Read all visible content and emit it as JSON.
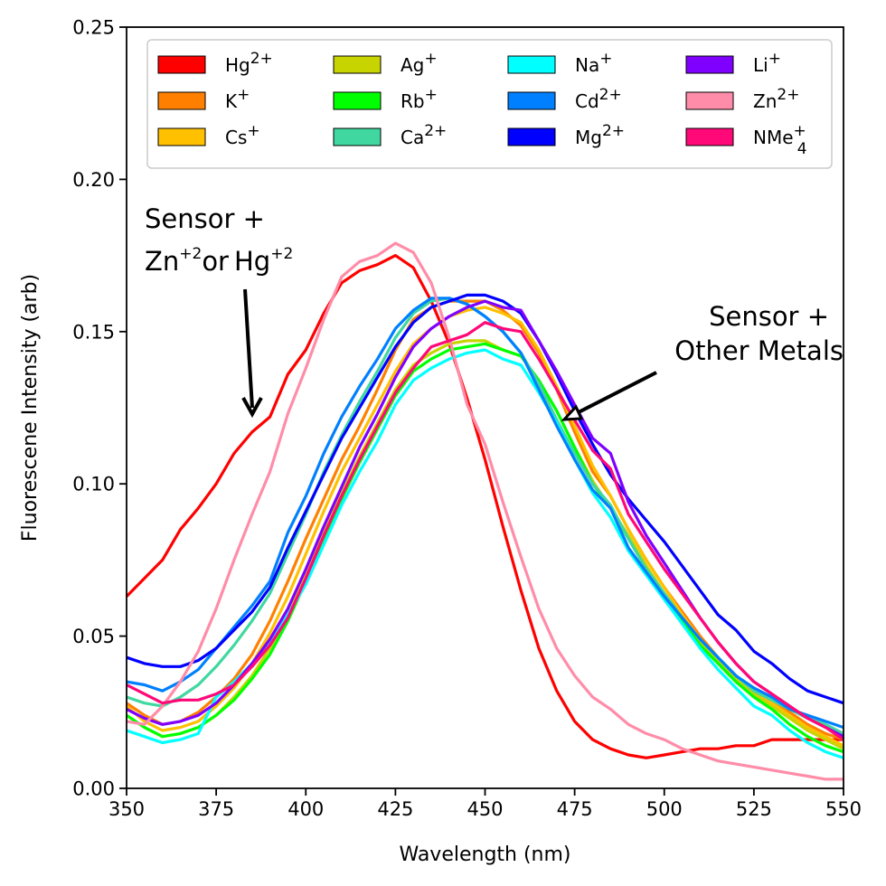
{
  "chart_data": {
    "type": "line",
    "title": "",
    "xlabel": "Wavelength (nm)",
    "ylabel": "Fluorescene Intensity (arb)",
    "xlim": [
      350,
      550
    ],
    "ylim": [
      0.0,
      0.25
    ],
    "x_ticks": [
      "350",
      "375",
      "400",
      "425",
      "450",
      "475",
      "500",
      "525",
      "550"
    ],
    "y_ticks": [
      "0.00",
      "0.05",
      "0.10",
      "0.15",
      "0.20",
      "0.25"
    ],
    "grid": false,
    "legend_position": "top",
    "x": [
      350,
      355,
      360,
      365,
      370,
      375,
      380,
      385,
      390,
      395,
      400,
      405,
      410,
      415,
      420,
      425,
      430,
      435,
      440,
      445,
      450,
      455,
      460,
      465,
      470,
      475,
      480,
      485,
      490,
      495,
      500,
      505,
      510,
      515,
      520,
      525,
      530,
      535,
      540,
      545,
      550
    ],
    "series": [
      {
        "name": "Hg2+",
        "base": "Hg",
        "sup": "2+",
        "color": "#ff0000",
        "values": [
          0.063,
          0.069,
          0.075,
          0.085,
          0.092,
          0.1,
          0.11,
          0.117,
          0.122,
          0.136,
          0.144,
          0.156,
          0.166,
          0.17,
          0.172,
          0.175,
          0.171,
          0.16,
          0.146,
          0.128,
          0.108,
          0.086,
          0.065,
          0.046,
          0.032,
          0.022,
          0.016,
          0.013,
          0.011,
          0.01,
          0.011,
          0.012,
          0.013,
          0.013,
          0.014,
          0.014,
          0.016,
          0.016,
          0.016,
          0.016,
          0.016
        ]
      },
      {
        "name": "K+",
        "base": "K",
        "sup": "+",
        "color": "#ff8000",
        "values": [
          0.028,
          0.024,
          0.021,
          0.022,
          0.025,
          0.03,
          0.036,
          0.044,
          0.055,
          0.068,
          0.082,
          0.095,
          0.108,
          0.119,
          0.131,
          0.144,
          0.154,
          0.158,
          0.16,
          0.16,
          0.16,
          0.157,
          0.152,
          0.143,
          0.131,
          0.117,
          0.104,
          0.096,
          0.085,
          0.075,
          0.066,
          0.058,
          0.05,
          0.043,
          0.037,
          0.031,
          0.028,
          0.025,
          0.021,
          0.018,
          0.016
        ]
      },
      {
        "name": "Cs+",
        "base": "Cs",
        "sup": "+",
        "color": "#ffc000",
        "values": [
          0.027,
          0.022,
          0.019,
          0.02,
          0.022,
          0.027,
          0.033,
          0.041,
          0.051,
          0.063,
          0.077,
          0.091,
          0.104,
          0.115,
          0.126,
          0.137,
          0.146,
          0.151,
          0.155,
          0.157,
          0.158,
          0.156,
          0.153,
          0.144,
          0.132,
          0.119,
          0.106,
          0.096,
          0.085,
          0.075,
          0.066,
          0.057,
          0.049,
          0.043,
          0.037,
          0.031,
          0.028,
          0.024,
          0.02,
          0.017,
          0.014
        ]
      },
      {
        "name": "Ag+",
        "base": "Ag",
        "sup": "+",
        "color": "#c8d400",
        "values": [
          0.024,
          0.02,
          0.017,
          0.018,
          0.02,
          0.024,
          0.03,
          0.037,
          0.046,
          0.057,
          0.07,
          0.084,
          0.097,
          0.109,
          0.12,
          0.131,
          0.139,
          0.143,
          0.146,
          0.147,
          0.147,
          0.144,
          0.142,
          0.134,
          0.124,
          0.112,
          0.101,
          0.092,
          0.083,
          0.073,
          0.064,
          0.056,
          0.048,
          0.042,
          0.036,
          0.031,
          0.027,
          0.023,
          0.019,
          0.016,
          0.013
        ]
      },
      {
        "name": "Rb+",
        "base": "Rb",
        "sup": "+",
        "color": "#00ff00",
        "values": [
          0.024,
          0.02,
          0.017,
          0.018,
          0.02,
          0.024,
          0.029,
          0.036,
          0.044,
          0.055,
          0.068,
          0.082,
          0.095,
          0.107,
          0.118,
          0.129,
          0.137,
          0.141,
          0.144,
          0.145,
          0.146,
          0.144,
          0.142,
          0.134,
          0.124,
          0.112,
          0.1,
          0.092,
          0.082,
          0.072,
          0.064,
          0.055,
          0.047,
          0.041,
          0.035,
          0.03,
          0.026,
          0.021,
          0.017,
          0.014,
          0.012
        ]
      },
      {
        "name": "Ca2+",
        "base": "Ca",
        "sup": "2+",
        "color": "#40d8a0",
        "values": [
          0.03,
          0.028,
          0.027,
          0.03,
          0.034,
          0.04,
          0.047,
          0.055,
          0.064,
          0.077,
          0.09,
          0.104,
          0.116,
          0.127,
          0.137,
          0.148,
          0.156,
          0.16,
          0.161,
          0.159,
          0.155,
          0.15,
          0.143,
          0.133,
          0.121,
          0.11,
          0.1,
          0.093,
          0.082,
          0.072,
          0.064,
          0.056,
          0.049,
          0.043,
          0.037,
          0.032,
          0.029,
          0.026,
          0.023,
          0.021,
          0.018
        ]
      },
      {
        "name": "Na+",
        "base": "Na",
        "sup": "+",
        "color": "#00ffff",
        "values": [
          0.019,
          0.017,
          0.015,
          0.016,
          0.018,
          0.03,
          0.035,
          0.041,
          0.048,
          0.057,
          0.067,
          0.08,
          0.093,
          0.104,
          0.114,
          0.126,
          0.134,
          0.138,
          0.141,
          0.143,
          0.144,
          0.141,
          0.139,
          0.13,
          0.12,
          0.108,
          0.097,
          0.089,
          0.078,
          0.07,
          0.062,
          0.054,
          0.046,
          0.039,
          0.033,
          0.027,
          0.024,
          0.019,
          0.015,
          0.012,
          0.01
        ]
      },
      {
        "name": "Cd2+",
        "base": "Cd",
        "sup": "2+",
        "color": "#0080ff",
        "values": [
          0.035,
          0.034,
          0.032,
          0.035,
          0.039,
          0.046,
          0.053,
          0.06,
          0.068,
          0.084,
          0.096,
          0.11,
          0.122,
          0.132,
          0.141,
          0.151,
          0.157,
          0.161,
          0.161,
          0.159,
          0.155,
          0.15,
          0.143,
          0.131,
          0.119,
          0.108,
          0.098,
          0.092,
          0.079,
          0.071,
          0.063,
          0.056,
          0.049,
          0.043,
          0.037,
          0.033,
          0.03,
          0.026,
          0.024,
          0.022,
          0.02
        ]
      },
      {
        "name": "Mg2+",
        "base": "Mg",
        "sup": "2+",
        "color": "#0000ff",
        "values": [
          0.043,
          0.041,
          0.04,
          0.04,
          0.042,
          0.046,
          0.052,
          0.058,
          0.066,
          0.079,
          0.091,
          0.103,
          0.115,
          0.125,
          0.135,
          0.145,
          0.153,
          0.158,
          0.16,
          0.162,
          0.162,
          0.16,
          0.156,
          0.147,
          0.136,
          0.124,
          0.113,
          0.103,
          0.095,
          0.088,
          0.081,
          0.073,
          0.065,
          0.057,
          0.052,
          0.045,
          0.041,
          0.036,
          0.032,
          0.03,
          0.028
        ]
      },
      {
        "name": "Li+",
        "base": "Li",
        "sup": "+",
        "color": "#8000ff",
        "values": [
          0.026,
          0.023,
          0.021,
          0.022,
          0.024,
          0.028,
          0.034,
          0.041,
          0.049,
          0.059,
          0.072,
          0.086,
          0.099,
          0.112,
          0.123,
          0.135,
          0.145,
          0.151,
          0.155,
          0.158,
          0.16,
          0.158,
          0.157,
          0.147,
          0.137,
          0.126,
          0.115,
          0.11,
          0.094,
          0.083,
          0.074,
          0.065,
          0.056,
          0.048,
          0.041,
          0.035,
          0.031,
          0.027,
          0.023,
          0.02,
          0.017
        ]
      },
      {
        "name": "Zn2+",
        "base": "Zn",
        "sup": "2+",
        "color": "#ff8ca8",
        "values": [
          0.022,
          0.021,
          0.027,
          0.035,
          0.045,
          0.059,
          0.075,
          0.09,
          0.104,
          0.123,
          0.138,
          0.154,
          0.168,
          0.173,
          0.175,
          0.179,
          0.176,
          0.166,
          0.148,
          0.126,
          0.113,
          0.094,
          0.076,
          0.059,
          0.046,
          0.037,
          0.03,
          0.026,
          0.021,
          0.018,
          0.016,
          0.013,
          0.011,
          0.009,
          0.008,
          0.007,
          0.006,
          0.005,
          0.004,
          0.003,
          0.003
        ]
      },
      {
        "name": "NMe4+",
        "base": "NMe",
        "sup": "+",
        "sub": "4",
        "color": "#ff0878",
        "values": [
          0.034,
          0.031,
          0.028,
          0.029,
          0.029,
          0.031,
          0.034,
          0.04,
          0.047,
          0.056,
          0.069,
          0.083,
          0.096,
          0.108,
          0.119,
          0.13,
          0.138,
          0.145,
          0.147,
          0.149,
          0.153,
          0.151,
          0.15,
          0.141,
          0.131,
          0.121,
          0.111,
          0.105,
          0.09,
          0.081,
          0.072,
          0.064,
          0.056,
          0.048,
          0.041,
          0.035,
          0.031,
          0.027,
          0.023,
          0.02,
          0.016
        ]
      }
    ],
    "annotations": [
      {
        "id": "zn-hg",
        "lines": [
          "Sensor +",
          "Zn+2or Hg+2"
        ]
      },
      {
        "id": "other",
        "lines": [
          "Sensor +",
          "Other Metals"
        ]
      }
    ]
  }
}
